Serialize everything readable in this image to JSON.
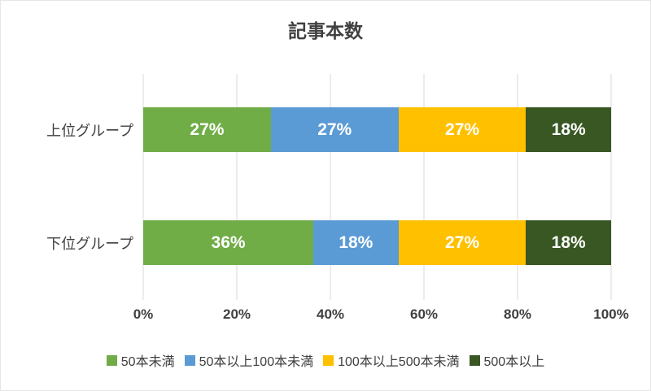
{
  "chart_data": {
    "type": "bar",
    "subtype": "stacked-100-horizontal",
    "title": "記事本数",
    "categories": [
      "上位グループ",
      "下位グループ"
    ],
    "series": [
      {
        "name": "50本未満",
        "color": "#70AD47",
        "values": [
          27,
          36
        ]
      },
      {
        "name": "50本以上100本未満",
        "color": "#5B9BD5",
        "values": [
          27,
          18
        ]
      },
      {
        "name": "100本以上500本未満",
        "color": "#FFC000",
        "values": [
          27,
          27
        ]
      },
      {
        "name": "500本以上",
        "color": "#385723",
        "values": [
          18,
          18
        ]
      }
    ],
    "data_label_suffix": "%",
    "x_ticks": [
      "0%",
      "20%",
      "40%",
      "60%",
      "80%",
      "100%"
    ],
    "xlim": [
      0,
      100
    ],
    "grid": "vertical",
    "gridline_color": "#D9D9D9",
    "legend_position": "bottom",
    "text_color": "#404040",
    "data_label_color": "#FFFFFF"
  }
}
